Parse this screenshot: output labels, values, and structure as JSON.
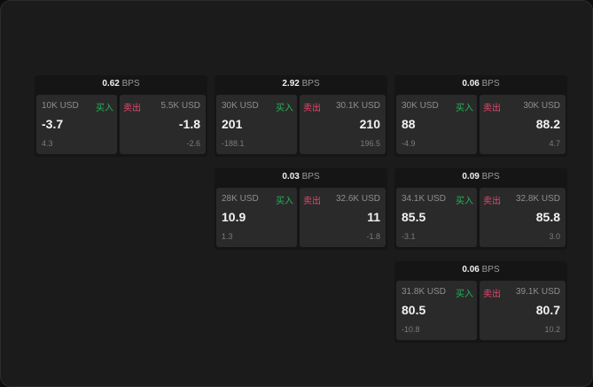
{
  "unit_label": "BPS",
  "buy_label": "买入",
  "sell_label": "卖出",
  "colors": {
    "buy": "#27b35a",
    "sell": "#e04a6e",
    "background": "#1b1b1b"
  },
  "widgets": [
    {
      "spread": "0.62",
      "buy": {
        "qty": "10K USD",
        "price": "-3.7",
        "change": "4.3"
      },
      "sell": {
        "qty": "5.5K USD",
        "price": "-1.8",
        "change": "-2.6"
      }
    },
    {
      "spread": "2.92",
      "buy": {
        "qty": "30K USD",
        "price": "201",
        "change": "-188.1"
      },
      "sell": {
        "qty": "30.1K USD",
        "price": "210",
        "change": "196.5"
      }
    },
    {
      "spread": "0.06",
      "buy": {
        "qty": "30K USD",
        "price": "88",
        "change": "-4.9"
      },
      "sell": {
        "qty": "30K USD",
        "price": "88.2",
        "change": "4.7"
      }
    },
    {
      "spread": "0.03",
      "buy": {
        "qty": "28K USD",
        "price": "10.9",
        "change": "1.3"
      },
      "sell": {
        "qty": "32.6K USD",
        "price": "11",
        "change": "-1.8"
      }
    },
    {
      "spread": "0.09",
      "buy": {
        "qty": "34.1K USD",
        "price": "85.5",
        "change": "-3.1"
      },
      "sell": {
        "qty": "32.8K USD",
        "price": "85.8",
        "change": "3.0"
      }
    },
    {
      "spread": "0.06",
      "buy": {
        "qty": "31.8K USD",
        "price": "80.5",
        "change": "-10.8"
      },
      "sell": {
        "qty": "39.1K USD",
        "price": "80.7",
        "change": "10.2"
      }
    }
  ]
}
